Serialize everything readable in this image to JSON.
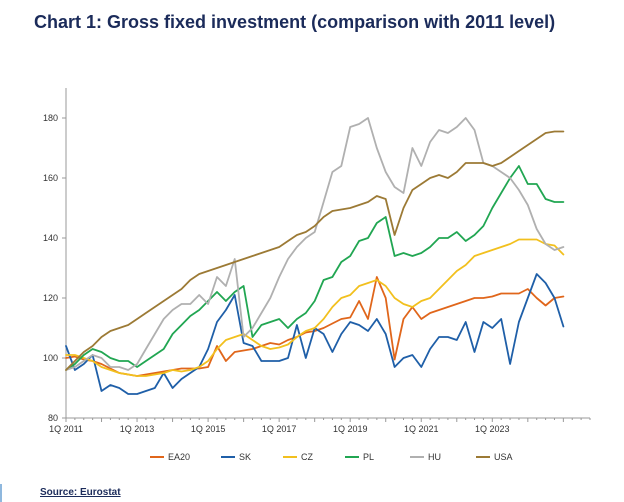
{
  "chart_data": {
    "type": "line",
    "title": "Chart 1: Gross fixed investment (comparison with 2011 level)",
    "xlabel": "",
    "ylabel": "",
    "ylim": [
      80,
      190
    ],
    "yticks": [
      "80",
      "100",
      "120",
      "140",
      "160",
      "180"
    ],
    "xticks": [
      "1Q 2011",
      "1Q 2013",
      "1Q 2015",
      "1Q 2017",
      "1Q 2019",
      "1Q 2021",
      "1Q 2023"
    ],
    "xlim": [
      2011.0,
      2025.75
    ],
    "grid": false,
    "legend": "bottom",
    "x": [
      2011.0,
      2011.25,
      2011.5,
      2011.75,
      2012.0,
      2012.25,
      2012.5,
      2012.75,
      2013.0,
      2013.25,
      2013.5,
      2013.75,
      2014.0,
      2014.25,
      2014.5,
      2014.75,
      2015.0,
      2015.25,
      2015.5,
      2015.75,
      2016.0,
      2016.25,
      2016.5,
      2016.75,
      2017.0,
      2017.25,
      2017.5,
      2017.75,
      2018.0,
      2018.25,
      2018.5,
      2018.75,
      2019.0,
      2019.25,
      2019.5,
      2019.75,
      2020.0,
      2020.25,
      2020.5,
      2020.75,
      2021.0,
      2021.25,
      2021.5,
      2021.75,
      2022.0,
      2022.25,
      2022.5,
      2022.75,
      2023.0,
      2023.25,
      2023.5,
      2023.75,
      2024.0,
      2024.25,
      2024.5,
      2024.75,
      2025.0
    ],
    "series": [
      {
        "name": "EA20",
        "color": "#e0661b",
        "values": [
          100,
          100.5,
          99.5,
          99,
          98,
          96.5,
          95,
          94.5,
          94,
          94.5,
          95,
          95.5,
          96,
          96.5,
          96.5,
          96.5,
          97,
          104,
          99,
          102,
          102.5,
          103,
          104,
          105,
          104.5,
          106,
          107,
          108.5,
          109,
          110,
          111.5,
          113,
          113.5,
          119,
          113,
          127,
          120,
          99.5,
          113,
          117,
          113,
          115,
          116,
          117,
          118,
          119,
          120,
          120,
          120.5,
          121.5,
          121.5,
          121.5,
          123,
          120,
          117.5,
          120,
          120.5
        ]
      },
      {
        "name": "SK",
        "color": "#1f5fa8",
        "values": [
          104,
          96,
          98,
          101,
          89,
          91,
          90,
          88,
          88,
          89,
          90,
          95,
          90,
          93,
          95,
          97,
          103,
          112,
          116,
          121,
          105,
          104,
          99,
          99,
          99,
          100,
          111,
          100,
          110,
          108,
          102,
          108,
          112,
          111,
          109,
          113,
          108,
          97,
          100,
          101,
          97,
          103,
          107,
          107,
          106,
          112,
          102,
          112,
          110,
          113,
          98,
          112,
          120,
          128,
          125,
          120,
          110.5
        ]
      },
      {
        "name": "CZ",
        "color": "#f2c01e",
        "values": [
          101,
          101,
          100,
          99,
          97,
          96,
          95,
          94.5,
          94,
          94,
          94.5,
          95,
          96,
          95.5,
          96,
          97,
          99,
          103,
          106,
          107,
          108,
          106,
          104,
          103,
          103.5,
          104.5,
          107,
          109,
          110,
          113,
          117,
          120,
          121,
          124,
          125,
          126,
          124,
          120,
          118,
          117,
          119,
          120,
          123,
          126,
          129,
          131,
          134,
          135,
          136,
          137,
          138,
          139.5,
          139.5,
          139.5,
          138,
          137.5,
          134.5
        ]
      },
      {
        "name": "PL",
        "color": "#21a652",
        "values": [
          96,
          98,
          101,
          103,
          102,
          100,
          99,
          99,
          97,
          99,
          101,
          103,
          108,
          111,
          114,
          116,
          119,
          122,
          119,
          122,
          124,
          107,
          111,
          112,
          113,
          110,
          113,
          115,
          119,
          126,
          127,
          132,
          134,
          139,
          140,
          145,
          147,
          134,
          135,
          134,
          135,
          137,
          140,
          140,
          142,
          139,
          141,
          144,
          150,
          155,
          160,
          164,
          158,
          158,
          153,
          152,
          152
        ]
      },
      {
        "name": "HU",
        "color": "#b0b0b0",
        "values": [
          96,
          97,
          99,
          101,
          100,
          97,
          97,
          96,
          98,
          103,
          108,
          113,
          116,
          118,
          118,
          121,
          118,
          127,
          124,
          133,
          107,
          110,
          115,
          120,
          127,
          133,
          137,
          140,
          142,
          152,
          162,
          164,
          177,
          178,
          180,
          170,
          162,
          157,
          155,
          170,
          164,
          172,
          176,
          175,
          177,
          180,
          176,
          165,
          164,
          162,
          160,
          156,
          151,
          143,
          138,
          136,
          137
        ]
      },
      {
        "name": "USA",
        "color": "#9c7a35",
        "values": [
          96,
          99,
          102,
          104,
          107,
          109,
          110,
          111,
          113,
          115,
          117,
          119,
          121,
          123,
          126,
          128,
          129,
          130,
          131,
          132,
          133,
          134,
          135,
          136,
          137,
          139,
          141,
          142,
          144,
          147,
          149,
          149.5,
          150,
          151,
          152,
          154,
          153,
          141,
          150,
          156,
          158,
          160,
          161,
          160,
          162,
          165,
          165,
          165,
          164,
          165,
          167,
          169,
          171,
          173,
          175,
          175.5,
          175.5
        ]
      }
    ]
  },
  "legend_items": [
    "EA20",
    "SK",
    "CZ",
    "PL",
    "HU",
    "USA"
  ],
  "source": "Source: Eurostat"
}
